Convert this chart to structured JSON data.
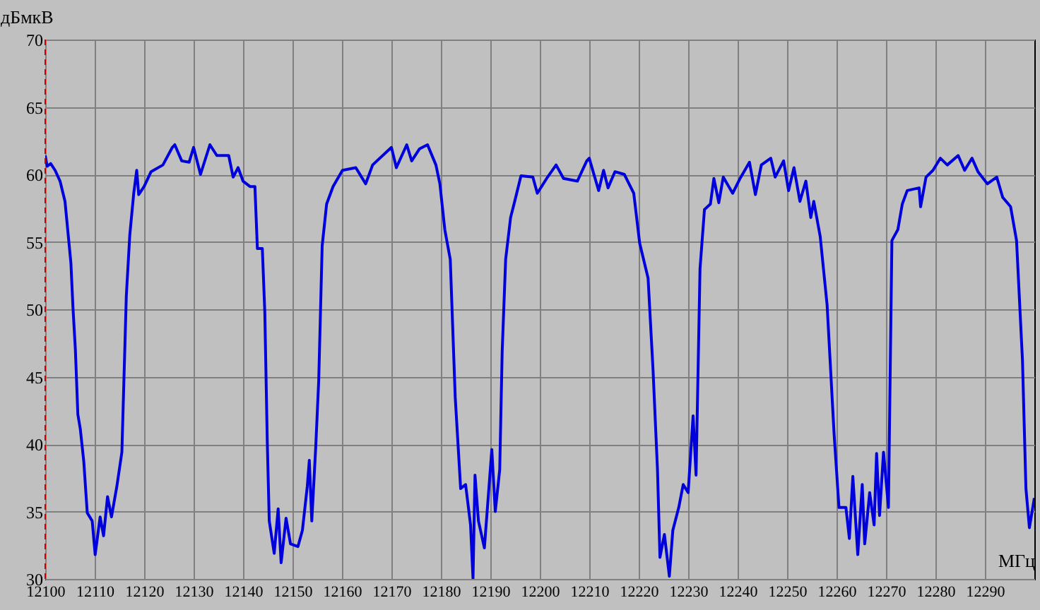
{
  "chart_data": {
    "type": "line",
    "xlabel": "МГц",
    "ylabel": "дБмкВ",
    "xlim": [
      12100,
      12300
    ],
    "ylim": [
      30,
      70
    ],
    "xticks": [
      12100,
      12110,
      12120,
      12130,
      12140,
      12150,
      12160,
      12170,
      12180,
      12190,
      12200,
      12210,
      12220,
      12230,
      12240,
      12250,
      12260,
      12270,
      12280,
      12290
    ],
    "yticks": [
      30,
      35,
      40,
      45,
      50,
      55,
      60,
      65,
      70
    ],
    "grid": true,
    "marker": "none",
    "line_style": "solid",
    "ref_lines": [
      {
        "axis": "x",
        "value": 12100,
        "color": "#cc0000",
        "line_style": "dashed"
      }
    ],
    "series": [
      {
        "color": "#0000dd",
        "x": [
          12100,
          12100.4,
          12101.1,
          12102,
          12103,
          12104,
          12105.2,
          12105.6,
          12106.1,
          12106.6,
          12107.1,
          12107.8,
          12108.5,
          12109.5,
          12110.1,
          12111.1,
          12111.8,
          12112.6,
          12113.4,
          12114.5,
          12115.5,
          12116.4,
          12117.1,
          12117.9,
          12118.5,
          12118.9,
          12120,
          12121.4,
          12123.8,
          12125.7,
          12126.2,
          12127.6,
          12129.1,
          12130,
          12131.4,
          12133.3,
          12134.7,
          12137.1,
          12138,
          12139,
          12140,
          12141.4,
          12142.4,
          12142.9,
          12143.9,
          12144.4,
          12144.9,
          12145.3,
          12146.3,
          12147.1,
          12147.7,
          12148.7,
          12149.6,
          12151.1,
          12152,
          12153,
          12153.4,
          12153.9,
          12154.7,
          12155.3,
          12156,
          12156.9,
          12158.2,
          12160.1,
          12162.8,
          12164.8,
          12166.2,
          12170,
          12171,
          12173.1,
          12174.1,
          12175.7,
          12177.3,
          12179,
          12179.8,
          12180.8,
          12181.9,
          12182.9,
          12184,
          12185,
          12186,
          12186.5,
          12186.9,
          12187.6,
          12188.8,
          12189.5,
          12190.3,
          12191,
          12191.9,
          12192.4,
          12193.1,
          12194.1,
          12195,
          12196.2,
          12198.6,
          12199.5,
          12201.4,
          12203.3,
          12204.8,
          12207.6,
          12209.5,
          12210,
          12211.9,
          12212.9,
          12213.8,
          12215.2,
          12217.1,
          12219,
          12220.2,
          12221.9,
          12222.9,
          12223.8,
          12224.3,
          12225.2,
          12226.2,
          12226.9,
          12228.1,
          12229,
          12230,
          12231,
          12231.6,
          12232.4,
          12233.3,
          12234.5,
          12235.2,
          12236.2,
          12237.1,
          12239,
          12240.5,
          12242.4,
          12243.6,
          12244.8,
          12246.7,
          12247.6,
          12249.3,
          12250.3,
          12251.4,
          12252.6,
          12253.8,
          12254.8,
          12255.4,
          12256.7,
          12258.1,
          12259.5,
          12260.5,
          12261.9,
          12262.6,
          12263.3,
          12264.3,
          12265.2,
          12265.7,
          12266.7,
          12267.6,
          12268.1,
          12268.7,
          12269.5,
          12270.5,
          12271.2,
          12272.4,
          12273.3,
          12274.3,
          12276.7,
          12277,
          12278.1,
          12279.5,
          12281,
          12282.4,
          12284.6,
          12285.9,
          12287.4,
          12288.6,
          12290.5,
          12292.4,
          12293.6,
          12295.2,
          12296.4,
          12297.6,
          12298.3,
          12299,
          12300
        ],
        "values": [
          61.4,
          60.6,
          60.8,
          60.3,
          59.5,
          58,
          53.4,
          50.2,
          47,
          42.2,
          41.1,
          38.7,
          34.9,
          34.3,
          31.8,
          34.6,
          33.2,
          36.1,
          34.6,
          36.9,
          39.4,
          51,
          55.5,
          58.6,
          60.3,
          58.5,
          59.1,
          60.2,
          60.7,
          62,
          62.2,
          61,
          60.9,
          62,
          60,
          62.2,
          61.4,
          61.4,
          59.8,
          60.5,
          59.5,
          59.1,
          59.1,
          54.5,
          54.5,
          49.8,
          40.2,
          34.3,
          31.9,
          35.2,
          31.2,
          34.5,
          32.6,
          32.4,
          33.6,
          36.9,
          38.8,
          34.3,
          39.8,
          44.7,
          54.7,
          57.8,
          59.1,
          60.3,
          60.5,
          59.3,
          60.7,
          62,
          60.5,
          62.2,
          61,
          61.9,
          62.2,
          60.7,
          59.3,
          55.9,
          53.7,
          43.5,
          36.7,
          37,
          34,
          30,
          37.7,
          34.3,
          32.3,
          35.7,
          39.6,
          35,
          38.1,
          46.9,
          53.7,
          56.8,
          58.1,
          59.9,
          59.8,
          58.6,
          59.7,
          60.7,
          59.7,
          59.5,
          61,
          61.2,
          58.8,
          60.3,
          59,
          60.2,
          60,
          58.6,
          54.9,
          52.3,
          45.5,
          38.1,
          31.6,
          33.3,
          30.2,
          33.6,
          35.3,
          37,
          36.4,
          42.1,
          37.7,
          53,
          57.4,
          57.8,
          59.7,
          57.9,
          59.8,
          58.6,
          59.7,
          60.9,
          58.5,
          60.7,
          61.2,
          59.8,
          61,
          58.8,
          60.5,
          58,
          59.5,
          56.8,
          58,
          55.4,
          50.3,
          40.8,
          35.3,
          35.3,
          33,
          37.6,
          31.8,
          37,
          32.6,
          36.4,
          34,
          39.3,
          34.7,
          39.4,
          35.3,
          55.1,
          55.9,
          57.8,
          58.8,
          59,
          57.6,
          59.8,
          60.3,
          61.2,
          60.7,
          61.4,
          60.3,
          61.2,
          60.2,
          59.3,
          59.8,
          58.3,
          57.6,
          55.1,
          46.2,
          36.7,
          33.8,
          36
        ]
      }
    ]
  }
}
